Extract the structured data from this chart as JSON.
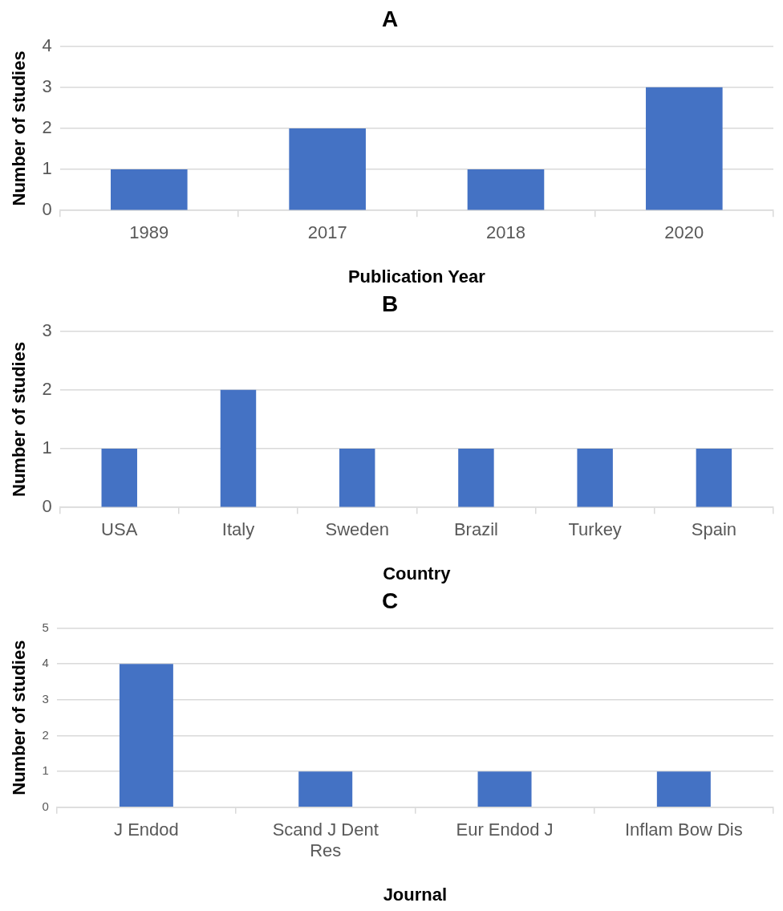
{
  "chart_data": [
    {
      "type": "bar",
      "title": "A",
      "xlabel": "Publication Year",
      "ylabel": "Number of studies",
      "categories": [
        "1989",
        "2017",
        "2018",
        "2020"
      ],
      "values": [
        1,
        2,
        1,
        3
      ],
      "color": "#4472c4",
      "ylim": [
        0,
        4
      ],
      "yticks": [
        0,
        1,
        2,
        3,
        4
      ],
      "grid": "y"
    },
    {
      "type": "bar",
      "title": "B",
      "xlabel": "Country",
      "ylabel": "Number of studies",
      "categories": [
        "USA",
        "Italy",
        "Sweden",
        "Brazil",
        "Turkey",
        "Spain"
      ],
      "values": [
        1,
        2,
        1,
        1,
        1,
        1
      ],
      "color": "#4472c4",
      "ylim": [
        0,
        3
      ],
      "yticks": [
        0,
        1,
        2,
        3
      ],
      "grid": "y"
    },
    {
      "type": "bar",
      "title": "C",
      "xlabel": "Journal",
      "ylabel": "Number of studies",
      "categories": [
        "J Endod",
        "Scand J Dent Res",
        "Eur Endod J",
        "Inflam Bow Dis"
      ],
      "values": [
        4,
        1,
        1,
        1
      ],
      "color": "#4472c4",
      "ylim": [
        0,
        5
      ],
      "yticks": [
        0,
        1,
        2,
        3,
        4,
        5
      ],
      "grid": "y"
    }
  ]
}
